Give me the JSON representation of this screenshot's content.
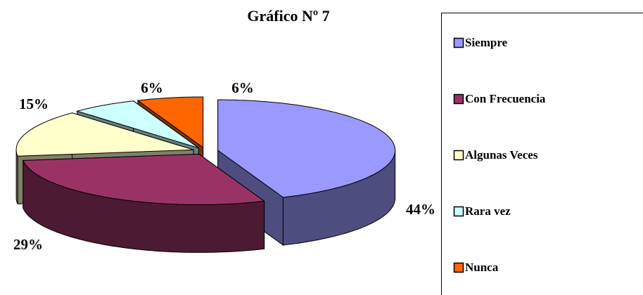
{
  "chart_data": {
    "type": "pie",
    "title": "Gráfico Nº 7",
    "categories": [
      "Siempre",
      "Con Frecuencia",
      "Algunas Veces",
      "Rara  vez",
      "Nunca"
    ],
    "values": [
      44,
      29,
      15,
      6,
      6
    ],
    "value_labels": [
      "44%",
      "29%",
      "15%",
      "6%",
      "6%"
    ],
    "colors": [
      "#9999ff",
      "#993366",
      "#ffffcc",
      "#ccffff",
      "#ff6600"
    ],
    "legend": "right"
  }
}
